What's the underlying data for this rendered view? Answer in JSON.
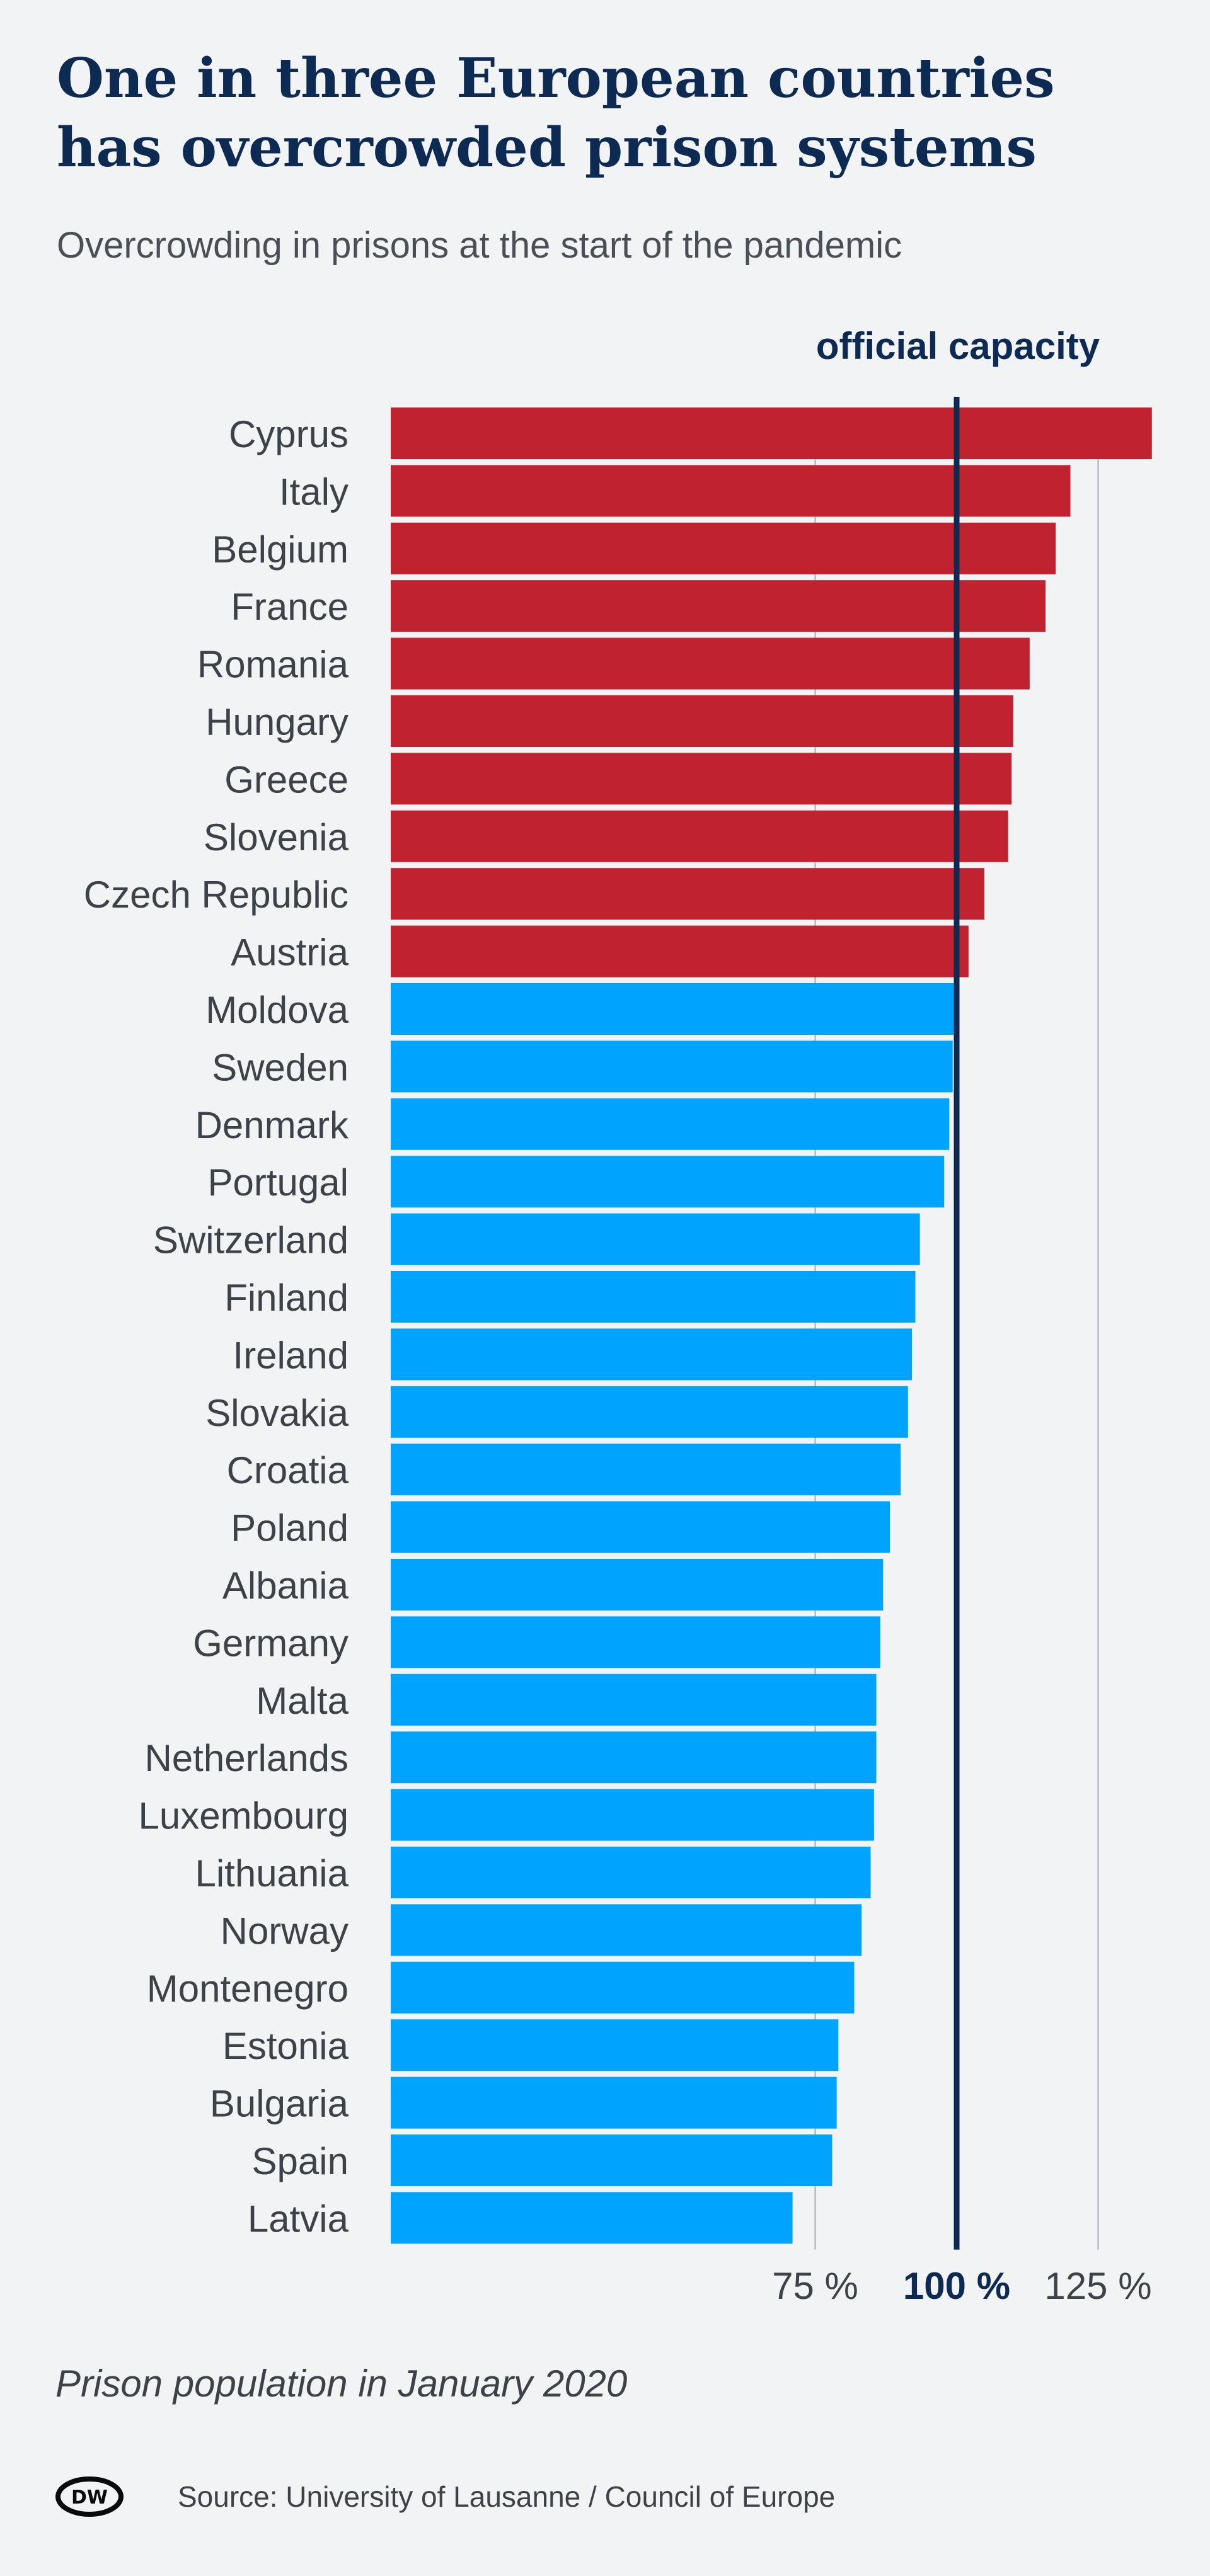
{
  "title": "One in three European countries has overcrowded prison systems",
  "subtitle": "Overcrowding in prisons at the start of the pandemic",
  "note": "Prison population in January 2020",
  "source": "Source: University of Lausanne / Council of Europe",
  "logo": {
    "text": "DW",
    "icon": "dw-logo-icon"
  },
  "colors": {
    "over": "#c0222f",
    "under": "#00a4ff",
    "reference": "#0c2a52",
    "grid": "#a8adb3"
  },
  "chart_data": {
    "type": "bar",
    "orientation": "horizontal",
    "categories": [
      "Cyprus",
      "Italy",
      "Belgium",
      "France",
      "Romania",
      "Hungary",
      "Greece",
      "Slovenia",
      "Czech Republic",
      "Austria",
      "Moldova",
      "Sweden",
      "Denmark",
      "Portugal",
      "Switzerland",
      "Finland",
      "Ireland",
      "Slovakia",
      "Croatia",
      "Poland",
      "Albania",
      "Germany",
      "Malta",
      "Netherlands",
      "Luxembourg",
      "Lithuania",
      "Norway",
      "Montenegro",
      "Estonia",
      "Bulgaria",
      "Spain",
      "Latvia"
    ],
    "values": [
      134.5,
      120.1,
      117.5,
      115.7,
      112.9,
      110.0,
      109.7,
      109.1,
      104.9,
      102.1,
      99.6,
      99.3,
      98.7,
      97.8,
      93.5,
      92.7,
      92.1,
      91.4,
      90.1,
      88.2,
      87.0,
      86.5,
      85.8,
      85.8,
      85.4,
      84.8,
      83.2,
      81.9,
      79.1,
      78.8,
      78.0,
      71.0
    ],
    "xlim": [
      0,
      140
    ],
    "ticks": [
      {
        "value": 75,
        "label": "75 %"
      },
      {
        "value": 100,
        "label": "100 %"
      },
      {
        "value": 125,
        "label": "125 %"
      }
    ],
    "reference": {
      "value": 100,
      "label": "official capacity"
    },
    "grid": "vertical"
  }
}
